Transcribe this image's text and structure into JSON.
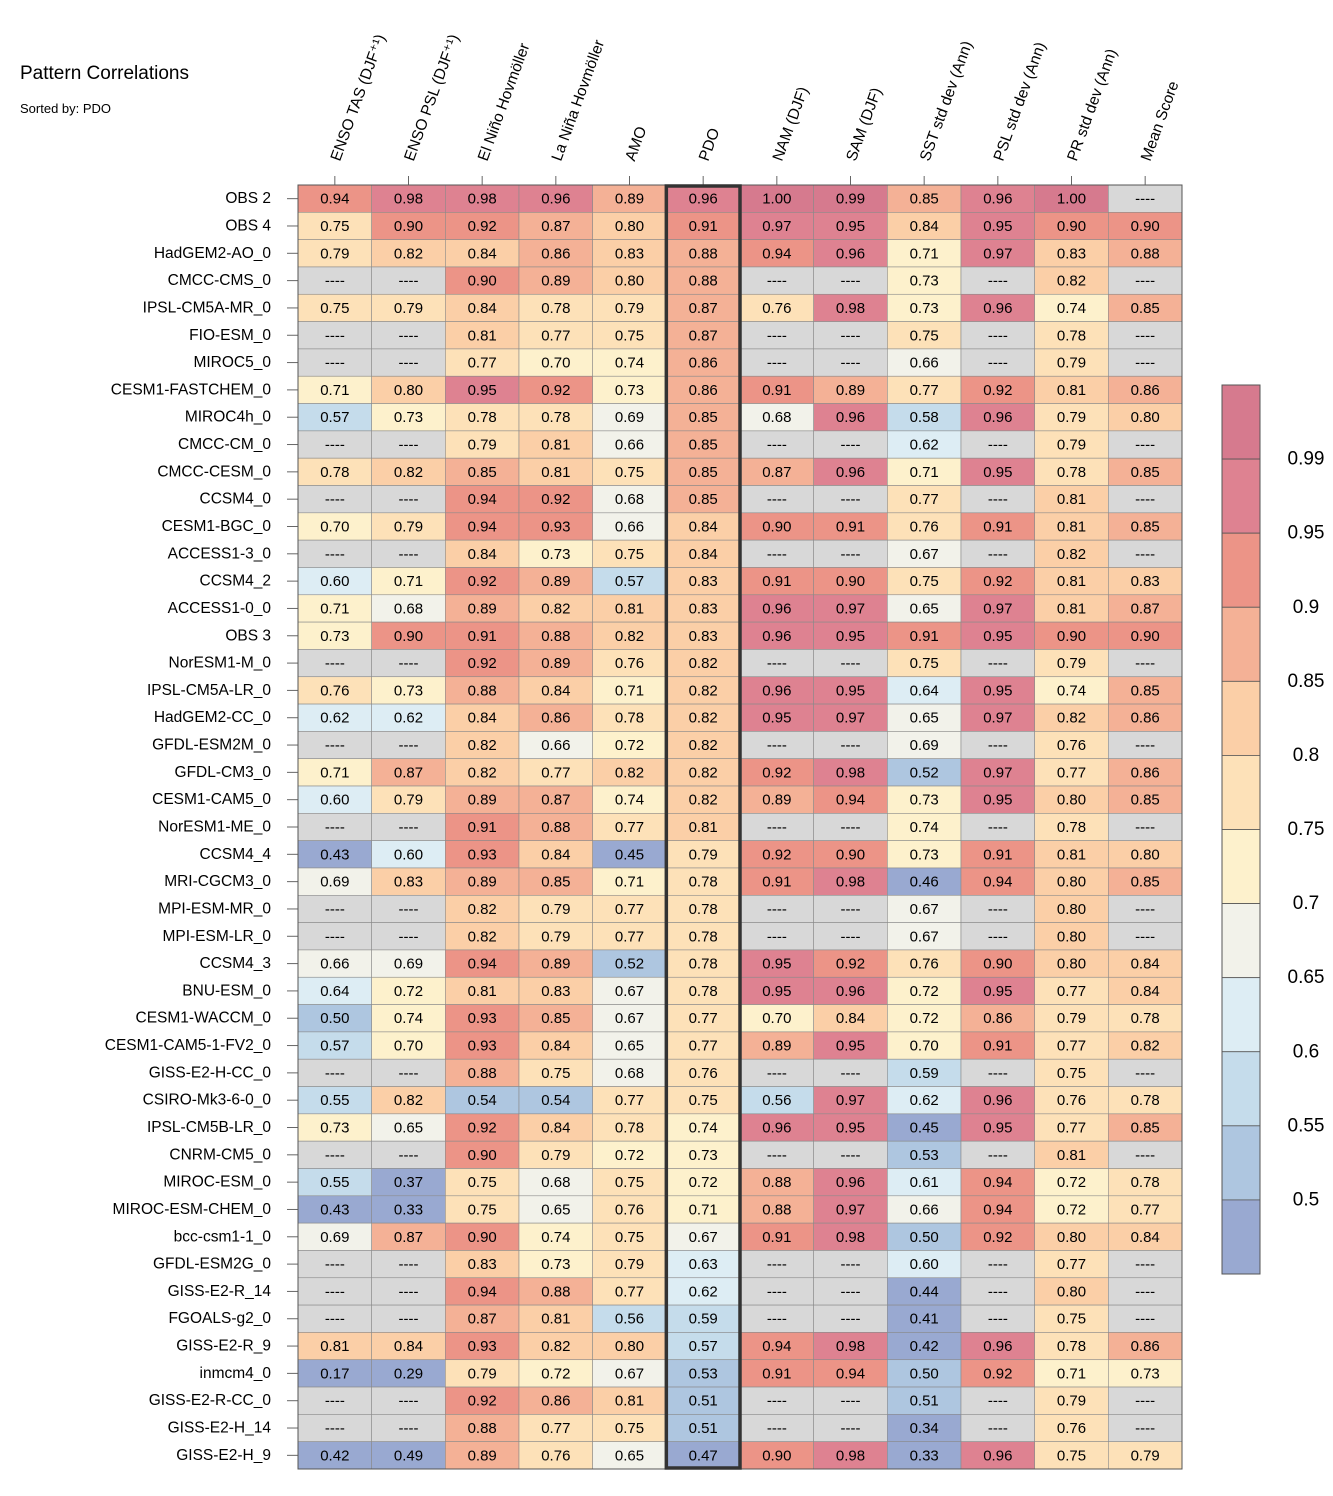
{
  "chart_data": {
    "type": "heatmap",
    "title": "Pattern Correlations",
    "subtitle": "Sorted by: PDO",
    "missing_label": "----",
    "highlight_column": "PDO",
    "columns": [
      "ENSO TAS (DJF⁺¹)",
      "ENSO PSL (DJF⁺¹)",
      "El Niño Hovmöller",
      "La Niña Hovmöller",
      "AMO",
      "PDO",
      "NAM (DJF)",
      "SAM (DJF)",
      "SST std dev (Ann)",
      "PSL std dev (Ann)",
      "PR std dev (Ann)",
      "Mean Score"
    ],
    "rows": [
      {
        "name": "OBS 2",
        "values": [
          0.94,
          0.98,
          0.98,
          0.96,
          0.89,
          0.96,
          1.0,
          0.99,
          0.85,
          0.96,
          1.0,
          null
        ]
      },
      {
        "name": "OBS 4",
        "values": [
          0.75,
          0.9,
          0.92,
          0.87,
          0.8,
          0.91,
          0.97,
          0.95,
          0.84,
          0.95,
          0.9,
          0.9
        ]
      },
      {
        "name": "HadGEM2-AO_0",
        "values": [
          0.79,
          0.82,
          0.84,
          0.86,
          0.83,
          0.88,
          0.94,
          0.96,
          0.71,
          0.97,
          0.83,
          0.88
        ]
      },
      {
        "name": "CMCC-CMS_0",
        "values": [
          null,
          null,
          0.9,
          0.89,
          0.8,
          0.88,
          null,
          null,
          0.73,
          null,
          0.82,
          null
        ]
      },
      {
        "name": "IPSL-CM5A-MR_0",
        "values": [
          0.75,
          0.79,
          0.84,
          0.78,
          0.79,
          0.87,
          0.76,
          0.98,
          0.73,
          0.96,
          0.74,
          0.85
        ]
      },
      {
        "name": "FIO-ESM_0",
        "values": [
          null,
          null,
          0.81,
          0.77,
          0.75,
          0.87,
          null,
          null,
          0.75,
          null,
          0.78,
          null
        ]
      },
      {
        "name": "MIROC5_0",
        "values": [
          null,
          null,
          0.77,
          0.7,
          0.74,
          0.86,
          null,
          null,
          0.66,
          null,
          0.79,
          null
        ]
      },
      {
        "name": "CESM1-FASTCHEM_0",
        "values": [
          0.71,
          0.8,
          0.95,
          0.92,
          0.73,
          0.86,
          0.91,
          0.89,
          0.77,
          0.92,
          0.81,
          0.86
        ]
      },
      {
        "name": "MIROC4h_0",
        "values": [
          0.57,
          0.73,
          0.78,
          0.78,
          0.69,
          0.85,
          0.68,
          0.96,
          0.58,
          0.96,
          0.79,
          0.8
        ]
      },
      {
        "name": "CMCC-CM_0",
        "values": [
          null,
          null,
          0.79,
          0.81,
          0.66,
          0.85,
          null,
          null,
          0.62,
          null,
          0.79,
          null
        ]
      },
      {
        "name": "CMCC-CESM_0",
        "values": [
          0.78,
          0.82,
          0.85,
          0.81,
          0.75,
          0.85,
          0.87,
          0.96,
          0.71,
          0.95,
          0.78,
          0.85
        ]
      },
      {
        "name": "CCSM4_0",
        "values": [
          null,
          null,
          0.94,
          0.92,
          0.68,
          0.85,
          null,
          null,
          0.77,
          null,
          0.81,
          null
        ]
      },
      {
        "name": "CESM1-BGC_0",
        "values": [
          0.7,
          0.79,
          0.94,
          0.93,
          0.66,
          0.84,
          0.9,
          0.91,
          0.76,
          0.91,
          0.81,
          0.85
        ]
      },
      {
        "name": "ACCESS1-3_0",
        "values": [
          null,
          null,
          0.84,
          0.73,
          0.75,
          0.84,
          null,
          null,
          0.67,
          null,
          0.82,
          null
        ]
      },
      {
        "name": "CCSM4_2",
        "values": [
          0.6,
          0.71,
          0.92,
          0.89,
          0.57,
          0.83,
          0.91,
          0.9,
          0.75,
          0.92,
          0.81,
          0.83
        ]
      },
      {
        "name": "ACCESS1-0_0",
        "values": [
          0.71,
          0.68,
          0.89,
          0.82,
          0.81,
          0.83,
          0.96,
          0.97,
          0.65,
          0.97,
          0.81,
          0.87
        ]
      },
      {
        "name": "OBS 3",
        "values": [
          0.73,
          0.9,
          0.91,
          0.88,
          0.82,
          0.83,
          0.96,
          0.95,
          0.91,
          0.95,
          0.9,
          0.9
        ]
      },
      {
        "name": "NorESM1-M_0",
        "values": [
          null,
          null,
          0.92,
          0.89,
          0.76,
          0.82,
          null,
          null,
          0.75,
          null,
          0.79,
          null
        ]
      },
      {
        "name": "IPSL-CM5A-LR_0",
        "values": [
          0.76,
          0.73,
          0.88,
          0.84,
          0.71,
          0.82,
          0.96,
          0.95,
          0.64,
          0.95,
          0.74,
          0.85
        ]
      },
      {
        "name": "HadGEM2-CC_0",
        "values": [
          0.62,
          0.62,
          0.84,
          0.86,
          0.78,
          0.82,
          0.95,
          0.97,
          0.65,
          0.97,
          0.82,
          0.86
        ]
      },
      {
        "name": "GFDL-ESM2M_0",
        "values": [
          null,
          null,
          0.82,
          0.66,
          0.72,
          0.82,
          null,
          null,
          0.69,
          null,
          0.76,
          null
        ]
      },
      {
        "name": "GFDL-CM3_0",
        "values": [
          0.71,
          0.87,
          0.82,
          0.77,
          0.82,
          0.82,
          0.92,
          0.98,
          0.52,
          0.97,
          0.77,
          0.86
        ]
      },
      {
        "name": "CESM1-CAM5_0",
        "values": [
          0.6,
          0.79,
          0.89,
          0.87,
          0.74,
          0.82,
          0.89,
          0.94,
          0.73,
          0.95,
          0.8,
          0.85
        ]
      },
      {
        "name": "NorESM1-ME_0",
        "values": [
          null,
          null,
          0.91,
          0.88,
          0.77,
          0.81,
          null,
          null,
          0.74,
          null,
          0.78,
          null
        ]
      },
      {
        "name": "CCSM4_4",
        "values": [
          0.43,
          0.6,
          0.93,
          0.84,
          0.45,
          0.79,
          0.92,
          0.9,
          0.73,
          0.91,
          0.81,
          0.8
        ]
      },
      {
        "name": "MRI-CGCM3_0",
        "values": [
          0.69,
          0.83,
          0.89,
          0.85,
          0.71,
          0.78,
          0.91,
          0.98,
          0.46,
          0.94,
          0.8,
          0.85
        ]
      },
      {
        "name": "MPI-ESM-MR_0",
        "values": [
          null,
          null,
          0.82,
          0.79,
          0.77,
          0.78,
          null,
          null,
          0.67,
          null,
          0.8,
          null
        ]
      },
      {
        "name": "MPI-ESM-LR_0",
        "values": [
          null,
          null,
          0.82,
          0.79,
          0.77,
          0.78,
          null,
          null,
          0.67,
          null,
          0.8,
          null
        ]
      },
      {
        "name": "CCSM4_3",
        "values": [
          0.66,
          0.69,
          0.94,
          0.89,
          0.52,
          0.78,
          0.95,
          0.92,
          0.76,
          0.9,
          0.8,
          0.84
        ]
      },
      {
        "name": "BNU-ESM_0",
        "values": [
          0.64,
          0.72,
          0.81,
          0.83,
          0.67,
          0.78,
          0.95,
          0.96,
          0.72,
          0.95,
          0.77,
          0.84
        ]
      },
      {
        "name": "CESM1-WACCM_0",
        "values": [
          0.5,
          0.74,
          0.93,
          0.85,
          0.67,
          0.77,
          0.7,
          0.84,
          0.72,
          0.86,
          0.79,
          0.78
        ]
      },
      {
        "name": "CESM1-CAM5-1-FV2_0",
        "values": [
          0.57,
          0.7,
          0.93,
          0.84,
          0.65,
          0.77,
          0.89,
          0.95,
          0.7,
          0.91,
          0.77,
          0.82
        ]
      },
      {
        "name": "GISS-E2-H-CC_0",
        "values": [
          null,
          null,
          0.88,
          0.75,
          0.68,
          0.76,
          null,
          null,
          0.59,
          null,
          0.75,
          null
        ]
      },
      {
        "name": "CSIRO-Mk3-6-0_0",
        "values": [
          0.55,
          0.82,
          0.54,
          0.54,
          0.77,
          0.75,
          0.56,
          0.97,
          0.62,
          0.96,
          0.76,
          0.78
        ]
      },
      {
        "name": "IPSL-CM5B-LR_0",
        "values": [
          0.73,
          0.65,
          0.92,
          0.84,
          0.78,
          0.74,
          0.96,
          0.95,
          0.45,
          0.95,
          0.77,
          0.85
        ]
      },
      {
        "name": "CNRM-CM5_0",
        "values": [
          null,
          null,
          0.9,
          0.79,
          0.72,
          0.73,
          null,
          null,
          0.53,
          null,
          0.81,
          null
        ]
      },
      {
        "name": "MIROC-ESM_0",
        "values": [
          0.55,
          0.37,
          0.75,
          0.68,
          0.75,
          0.72,
          0.88,
          0.96,
          0.61,
          0.94,
          0.72,
          0.78
        ]
      },
      {
        "name": "MIROC-ESM-CHEM_0",
        "values": [
          0.43,
          0.33,
          0.75,
          0.65,
          0.76,
          0.71,
          0.88,
          0.97,
          0.66,
          0.94,
          0.72,
          0.77
        ]
      },
      {
        "name": "bcc-csm1-1_0",
        "values": [
          0.69,
          0.87,
          0.9,
          0.74,
          0.75,
          0.67,
          0.91,
          0.98,
          0.5,
          0.92,
          0.8,
          0.84
        ]
      },
      {
        "name": "GFDL-ESM2G_0",
        "values": [
          null,
          null,
          0.83,
          0.73,
          0.79,
          0.63,
          null,
          null,
          0.6,
          null,
          0.77,
          null
        ]
      },
      {
        "name": "GISS-E2-R_14",
        "values": [
          null,
          null,
          0.94,
          0.88,
          0.77,
          0.62,
          null,
          null,
          0.44,
          null,
          0.8,
          null
        ]
      },
      {
        "name": "FGOALS-g2_0",
        "values": [
          null,
          null,
          0.87,
          0.81,
          0.56,
          0.59,
          null,
          null,
          0.41,
          null,
          0.75,
          null
        ]
      },
      {
        "name": "GISS-E2-R_9",
        "values": [
          0.81,
          0.84,
          0.93,
          0.82,
          0.8,
          0.57,
          0.94,
          0.98,
          0.42,
          0.96,
          0.78,
          0.86
        ]
      },
      {
        "name": "inmcm4_0",
        "values": [
          0.17,
          0.29,
          0.79,
          0.72,
          0.67,
          0.53,
          0.91,
          0.94,
          0.5,
          0.92,
          0.71,
          0.73
        ]
      },
      {
        "name": "GISS-E2-R-CC_0",
        "values": [
          null,
          null,
          0.92,
          0.86,
          0.81,
          0.51,
          null,
          null,
          0.51,
          null,
          0.79,
          null
        ]
      },
      {
        "name": "GISS-E2-H_14",
        "values": [
          null,
          null,
          0.88,
          0.77,
          0.75,
          0.51,
          null,
          null,
          0.34,
          null,
          0.76,
          null
        ]
      },
      {
        "name": "GISS-E2-H_9",
        "values": [
          0.42,
          0.49,
          0.89,
          0.76,
          0.65,
          0.47,
          0.9,
          0.98,
          0.33,
          0.96,
          0.75,
          0.79
        ]
      }
    ],
    "colorbar": {
      "tick_labels": [
        "0.99",
        "0.95",
        "0.9",
        "0.85",
        "0.8",
        "0.75",
        "0.7",
        "0.65",
        "0.6",
        "0.55",
        "0.5"
      ],
      "levels": [
        0.5,
        0.55,
        0.6,
        0.65,
        0.7,
        0.75,
        0.8,
        0.85,
        0.9,
        0.95,
        0.99
      ],
      "colors": [
        "#99a9d1",
        "#aec6e0",
        "#c5dceb",
        "#ddedf4",
        "#f2f2ea",
        "#fdf1cc",
        "#fde1b8",
        "#fbcfa7",
        "#f4b196",
        "#ec9487",
        "#de8291",
        "#d67a8e"
      ],
      "missing_color": "#d8d8d8"
    }
  }
}
